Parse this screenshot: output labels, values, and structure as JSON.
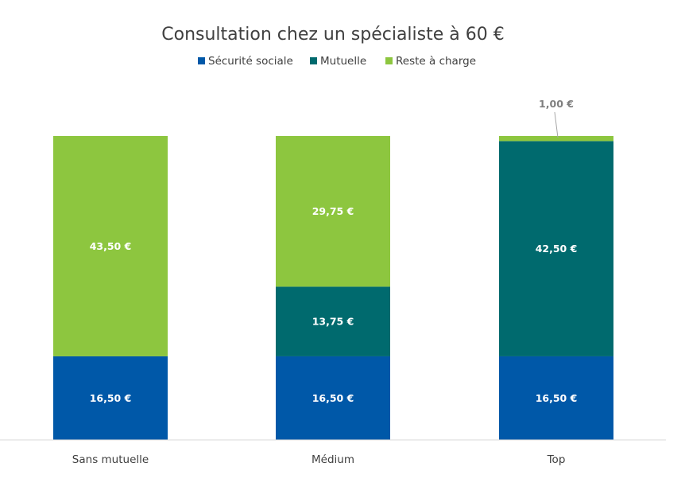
{
  "chart_data": {
    "type": "bar",
    "stacked": true,
    "title": "Consultation chez un spécialiste à 60 €",
    "categories": [
      "Sans mutuelle",
      "Médium",
      "Top"
    ],
    "series": [
      {
        "name": "Sécurité sociale",
        "color": "#0058A8",
        "values": [
          16.5,
          16.5,
          16.5
        ],
        "labels": [
          "16,50 €",
          "16,50 €",
          "16,50 €"
        ]
      },
      {
        "name": "Mutuelle",
        "color": "#006A6E",
        "values": [
          0,
          13.75,
          42.5
        ],
        "labels": [
          "",
          "13,75 €",
          "42,50 €"
        ]
      },
      {
        "name": "Reste à charge",
        "color": "#8DC63F",
        "values": [
          43.5,
          29.75,
          1.0
        ],
        "labels": [
          "43,50 €",
          "29,75 €",
          "1,00 €"
        ]
      }
    ],
    "ylim": [
      0,
      60
    ],
    "grid": false,
    "legend_position": "top"
  }
}
